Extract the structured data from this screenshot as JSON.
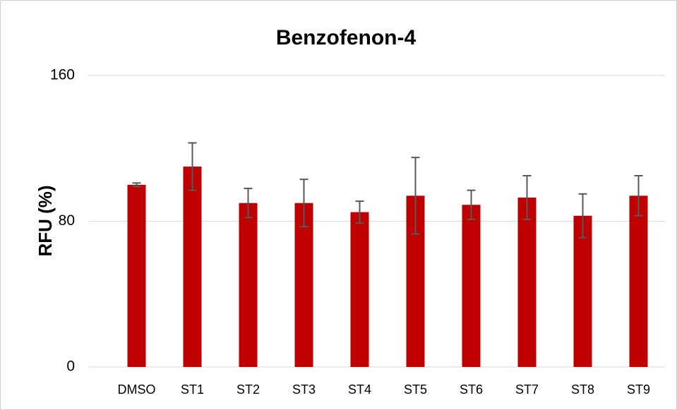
{
  "chart_data": {
    "type": "bar",
    "title": "Benzofenon-4",
    "y_label": "RFU (%)",
    "categories": [
      "DMSO",
      "ST1",
      "ST2",
      "ST3",
      "ST4",
      "ST5",
      "ST6",
      "ST7",
      "ST8",
      "ST9"
    ],
    "values": [
      100,
      110,
      90,
      90,
      85,
      94,
      89,
      93,
      83,
      94
    ],
    "errors": [
      1,
      13,
      8,
      13,
      6,
      21,
      8,
      12,
      12,
      11
    ],
    "color": "#c00000",
    "error_color": "#595959",
    "ylim": [
      0,
      160
    ],
    "yticks": [
      0,
      80,
      160
    ],
    "grid": true
  }
}
